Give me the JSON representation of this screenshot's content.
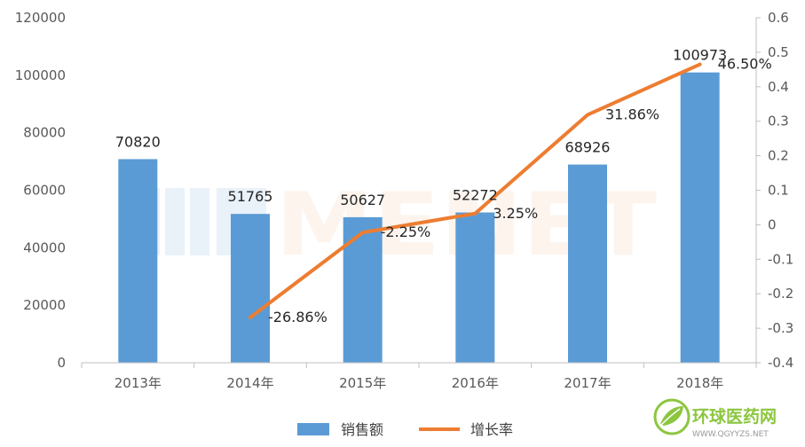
{
  "chart_data": {
    "type": "bar",
    "categories": [
      "2013年",
      "2014年",
      "2015年",
      "2016年",
      "2017年",
      "2018年"
    ],
    "series": [
      {
        "name": "销售额",
        "type": "bar",
        "axis": "left",
        "values": [
          70820,
          51765,
          50627,
          52272,
          68926,
          100973
        ],
        "labels": [
          "70820",
          "51765",
          "50627",
          "52272",
          "68926",
          "100973"
        ]
      },
      {
        "name": "增长率",
        "type": "line",
        "axis": "right",
        "values": [
          null,
          -0.2686,
          -0.0225,
          0.0325,
          0.3186,
          0.465
        ],
        "labels": [
          "",
          "-26.86%",
          "-2.25%",
          "3.25%",
          "31.86%",
          "46.50%"
        ]
      }
    ],
    "y_left": {
      "lim": [
        0,
        120000
      ],
      "ticks": [
        "0",
        "20000",
        "40000",
        "60000",
        "80000",
        "100000",
        "120000"
      ]
    },
    "y_right": {
      "lim": [
        -0.4,
        0.6
      ],
      "ticks": [
        "-0.4",
        "-0.3",
        "-0.2",
        "-0.1",
        "0",
        "0.1",
        "0.2",
        "0.3",
        "0.4",
        "0.5",
        "0.6"
      ]
    },
    "grid": false,
    "legend_position": "bottom",
    "colors": {
      "bar": "#5b9bd5",
      "line": "#ed7d31"
    }
  },
  "watermark": {
    "text": "MENET"
  },
  "logo": {
    "name": "环球医药网",
    "url": "WWW.QGYYZS.NET",
    "icon": "globe-leaf-icon"
  }
}
